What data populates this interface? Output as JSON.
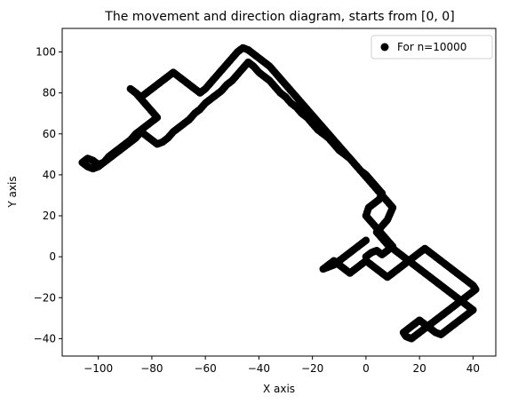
{
  "chart_data": {
    "type": "scatter",
    "title": "The movement and direction diagram, starts from [0, 0]",
    "xlabel": "X axis",
    "ylabel": "Y axis",
    "xlim": [
      -113.5,
      48.5
    ],
    "ylim": [
      -48.5,
      111.5
    ],
    "xticks": [
      -100,
      -80,
      -60,
      -40,
      -20,
      0,
      20,
      40
    ],
    "xtick_labels": [
      "−100",
      "−80",
      "−60",
      "−40",
      "−20",
      "0",
      "20",
      "40"
    ],
    "yticks": [
      -40,
      -20,
      0,
      20,
      40,
      60,
      80,
      100
    ],
    "ytick_labels": [
      "−40",
      "−20",
      "0",
      "20",
      "40",
      "60",
      "80",
      "100"
    ],
    "grid": false,
    "legend_position": "top-right",
    "series": [
      {
        "name": "For n=10000",
        "color": "#000000",
        "marker": "circle",
        "points": [
          [
            0,
            0
          ],
          [
            2,
            2
          ],
          [
            4,
            3
          ],
          [
            6,
            1
          ],
          [
            8,
            3
          ],
          [
            10,
            5
          ],
          [
            8,
            8
          ],
          [
            6,
            11
          ],
          [
            4,
            14
          ],
          [
            2,
            17
          ],
          [
            0,
            20
          ],
          [
            1,
            24
          ],
          [
            3,
            26
          ],
          [
            5,
            28
          ],
          [
            6,
            31
          ],
          [
            4,
            34
          ],
          [
            2,
            37
          ],
          [
            0,
            40
          ],
          [
            -2,
            42
          ],
          [
            -4,
            45
          ],
          [
            -6,
            48
          ],
          [
            -8,
            50
          ],
          [
            -10,
            52
          ],
          [
            -12,
            55
          ],
          [
            -14,
            58
          ],
          [
            -16,
            60
          ],
          [
            -18,
            62
          ],
          [
            -20,
            65
          ],
          [
            -22,
            68
          ],
          [
            -24,
            70
          ],
          [
            -26,
            73
          ],
          [
            -28,
            75
          ],
          [
            -30,
            78
          ],
          [
            -32,
            80
          ],
          [
            -34,
            83
          ],
          [
            -36,
            86
          ],
          [
            -38,
            88
          ],
          [
            -40,
            90
          ],
          [
            -42,
            93
          ],
          [
            -44,
            95
          ],
          [
            -46,
            92
          ],
          [
            -48,
            89
          ],
          [
            -50,
            86
          ],
          [
            -52,
            84
          ],
          [
            -54,
            81
          ],
          [
            -56,
            79
          ],
          [
            -58,
            77
          ],
          [
            -60,
            75
          ],
          [
            -62,
            72
          ],
          [
            -64,
            70
          ],
          [
            -66,
            67
          ],
          [
            -68,
            65
          ],
          [
            -70,
            63
          ],
          [
            -72,
            61
          ],
          [
            -74,
            58
          ],
          [
            -76,
            56
          ],
          [
            -78,
            55
          ],
          [
            -80,
            57
          ],
          [
            -82,
            59
          ],
          [
            -84,
            61
          ],
          [
            -86,
            58
          ],
          [
            -88,
            56
          ],
          [
            -90,
            54
          ],
          [
            -92,
            52
          ],
          [
            -94,
            50
          ],
          [
            -96,
            48
          ],
          [
            -98,
            46
          ],
          [
            -100,
            45
          ],
          [
            -102,
            47
          ],
          [
            -104,
            48
          ],
          [
            -106,
            46
          ],
          [
            -104,
            44
          ],
          [
            -102,
            43
          ],
          [
            -100,
            44
          ],
          [
            -98,
            46
          ],
          [
            -96,
            49
          ],
          [
            -94,
            51
          ],
          [
            -92,
            53
          ],
          [
            -90,
            55
          ],
          [
            -88,
            57
          ],
          [
            -86,
            60
          ],
          [
            -84,
            62
          ],
          [
            -82,
            64
          ],
          [
            -80,
            66
          ],
          [
            -78,
            68
          ],
          [
            -80,
            71
          ],
          [
            -82,
            74
          ],
          [
            -84,
            77
          ],
          [
            -86,
            80
          ],
          [
            -88,
            82
          ],
          [
            -86,
            80
          ],
          [
            -84,
            78
          ],
          [
            -82,
            80
          ],
          [
            -80,
            82
          ],
          [
            -78,
            84
          ],
          [
            -76,
            86
          ],
          [
            -74,
            88
          ],
          [
            -72,
            90
          ],
          [
            -70,
            88
          ],
          [
            -68,
            86
          ],
          [
            -66,
            84
          ],
          [
            -64,
            82
          ],
          [
            -62,
            80
          ],
          [
            -60,
            82
          ],
          [
            -58,
            85
          ],
          [
            -56,
            88
          ],
          [
            -54,
            91
          ],
          [
            -52,
            94
          ],
          [
            -50,
            97
          ],
          [
            -48,
            100
          ],
          [
            -46,
            102
          ],
          [
            -44,
            101
          ],
          [
            -42,
            99
          ],
          [
            -40,
            97
          ],
          [
            -38,
            95
          ],
          [
            -36,
            93
          ],
          [
            -34,
            90
          ],
          [
            -32,
            87
          ],
          [
            -30,
            84
          ],
          [
            -28,
            81
          ],
          [
            -26,
            78
          ],
          [
            -24,
            75
          ],
          [
            -22,
            72
          ],
          [
            -20,
            69
          ],
          [
            -18,
            66
          ],
          [
            -16,
            63
          ],
          [
            -14,
            60
          ],
          [
            -12,
            57
          ],
          [
            -10,
            54
          ],
          [
            -8,
            51
          ],
          [
            -6,
            48
          ],
          [
            -4,
            45
          ],
          [
            -2,
            42
          ],
          [
            0,
            39
          ],
          [
            2,
            36
          ],
          [
            4,
            33
          ],
          [
            6,
            30
          ],
          [
            8,
            27
          ],
          [
            10,
            24
          ],
          [
            9,
            21
          ],
          [
            8,
            18
          ],
          [
            6,
            15
          ],
          [
            4,
            12
          ],
          [
            6,
            9
          ],
          [
            8,
            6
          ],
          [
            10,
            4
          ],
          [
            12,
            2
          ],
          [
            14,
            0
          ],
          [
            16,
            -2
          ],
          [
            18,
            -4
          ],
          [
            20,
            -6
          ],
          [
            22,
            -8
          ],
          [
            24,
            -10
          ],
          [
            26,
            -12
          ],
          [
            28,
            -14
          ],
          [
            30,
            -16
          ],
          [
            32,
            -18
          ],
          [
            34,
            -20
          ],
          [
            36,
            -22
          ],
          [
            38,
            -24
          ],
          [
            40,
            -26
          ],
          [
            38,
            -28
          ],
          [
            36,
            -30
          ],
          [
            34,
            -32
          ],
          [
            32,
            -34
          ],
          [
            30,
            -36
          ],
          [
            28,
            -38
          ],
          [
            26,
            -37
          ],
          [
            24,
            -35
          ],
          [
            22,
            -33
          ],
          [
            20,
            -31
          ],
          [
            18,
            -33
          ],
          [
            16,
            -35
          ],
          [
            14,
            -37
          ],
          [
            15,
            -39
          ],
          [
            17,
            -40
          ],
          [
            19,
            -38
          ],
          [
            21,
            -36
          ],
          [
            23,
            -34
          ],
          [
            25,
            -32
          ],
          [
            27,
            -30
          ],
          [
            29,
            -28
          ],
          [
            31,
            -26
          ],
          [
            33,
            -24
          ],
          [
            35,
            -22
          ],
          [
            37,
            -20
          ],
          [
            39,
            -18
          ],
          [
            41,
            -16
          ],
          [
            40,
            -14
          ],
          [
            38,
            -12
          ],
          [
            36,
            -10
          ],
          [
            34,
            -8
          ],
          [
            32,
            -6
          ],
          [
            30,
            -4
          ],
          [
            28,
            -2
          ],
          [
            26,
            0
          ],
          [
            24,
            2
          ],
          [
            22,
            4
          ],
          [
            20,
            2
          ],
          [
            18,
            0
          ],
          [
            16,
            -2
          ],
          [
            14,
            -4
          ],
          [
            12,
            -6
          ],
          [
            10,
            -8
          ],
          [
            8,
            -10
          ],
          [
            6,
            -8
          ],
          [
            4,
            -6
          ],
          [
            2,
            -4
          ],
          [
            0,
            -2
          ],
          [
            -2,
            -4
          ],
          [
            -4,
            -6
          ],
          [
            -6,
            -8
          ],
          [
            -8,
            -6
          ],
          [
            -10,
            -4
          ],
          [
            -12,
            -2
          ],
          [
            -14,
            -4
          ],
          [
            -16,
            -6
          ],
          [
            -14,
            -5
          ],
          [
            -12,
            -4
          ],
          [
            -10,
            -2
          ],
          [
            -8,
            0
          ],
          [
            -6,
            2
          ],
          [
            -4,
            4
          ],
          [
            -2,
            6
          ],
          [
            0,
            8
          ]
        ]
      }
    ]
  }
}
